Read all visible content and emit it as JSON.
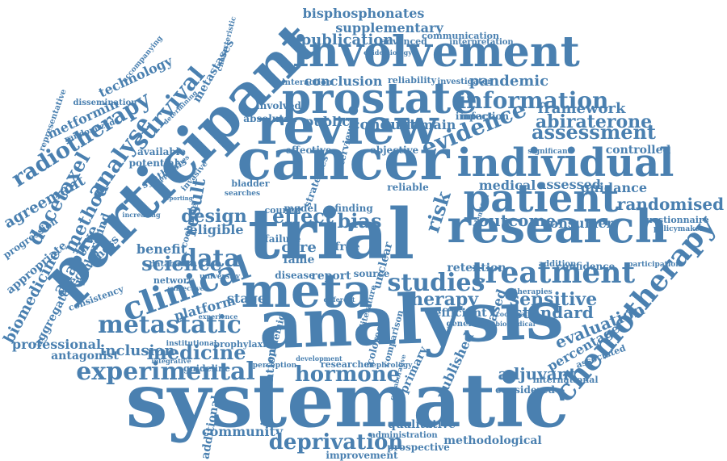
{
  "cloud": {
    "color": "#4a80b0",
    "words": [
      "systematic",
      "analysis",
      "participant",
      "trial",
      "cancer",
      "review",
      "research",
      "involvement",
      "prostate",
      "individual",
      "meta",
      "patient",
      "radiotherapy",
      "clinical",
      "chemotherapy",
      "treatment",
      "experimental",
      "metastatic",
      "deprivation",
      "hormone",
      "studies",
      "information",
      "randomised",
      "evidence",
      "assessment",
      "survival",
      "analyse",
      "docetaxel",
      "data",
      "medicine",
      "science",
      "design",
      "result",
      "effect",
      "bias",
      "risk",
      "therapy",
      "outcome",
      "sensitive",
      "standard",
      "evaluation",
      "adjuvant",
      "percentage",
      "abiraterone",
      "framework",
      "publication",
      "bisphosphonates",
      "supplementary",
      "communication",
      "pandemic",
      "conclusion",
      "conduct",
      "domain",
      "public",
      "method",
      "agreement",
      "progression",
      "biomedicine",
      "appropriate",
      "adaptive",
      "effectiveness",
      "aggregate",
      "inclusion",
      "professional",
      "antagonist",
      "community",
      "additional",
      "intervention",
      "published",
      "primary",
      "qualitative",
      "methodological",
      "prospective",
      "improvement",
      "consumer",
      "guidance",
      "controlled",
      "questionnaire",
      "confidence",
      "assessed",
      "medical",
      "metformin",
      "technology",
      "metastases",
      "dissemination",
      "representative",
      "randomized",
      "synthesis",
      "available",
      "potential",
      "benefit",
      "platform",
      "stage",
      "network",
      "consistency",
      "guideline",
      "prophylaxis",
      "institutional",
      "report",
      "disease",
      "source",
      "efficient",
      "based",
      "considered",
      "international",
      "associated",
      "retention",
      "failure",
      "model",
      "council",
      "eligible",
      "cochrane",
      "background",
      "finding",
      "care",
      "free",
      "fame",
      "reliable",
      "impact",
      "infection",
      "objective",
      "effective",
      "interview",
      "strategies",
      "absolute",
      "involved",
      "invasive",
      "bladder",
      "searches",
      "database",
      "interaction",
      "reliability",
      "investigator",
      "advanced",
      "interpretation",
      "epidemiology",
      "accompanying",
      "approaches",
      "comparison",
      "colorectal",
      "epidemic",
      "literature",
      "researcher",
      "nephrology",
      "collaborative",
      "administration",
      "perception",
      "development",
      "generation",
      "biomedical",
      "cooperative",
      "addition",
      "participation",
      "policymaker",
      "significant",
      "identified",
      "therapies",
      "university",
      "subjective",
      "experience",
      "integrative",
      "increasing",
      "different",
      "characteristic",
      "reporting",
      "determining",
      "unclear"
    ]
  }
}
